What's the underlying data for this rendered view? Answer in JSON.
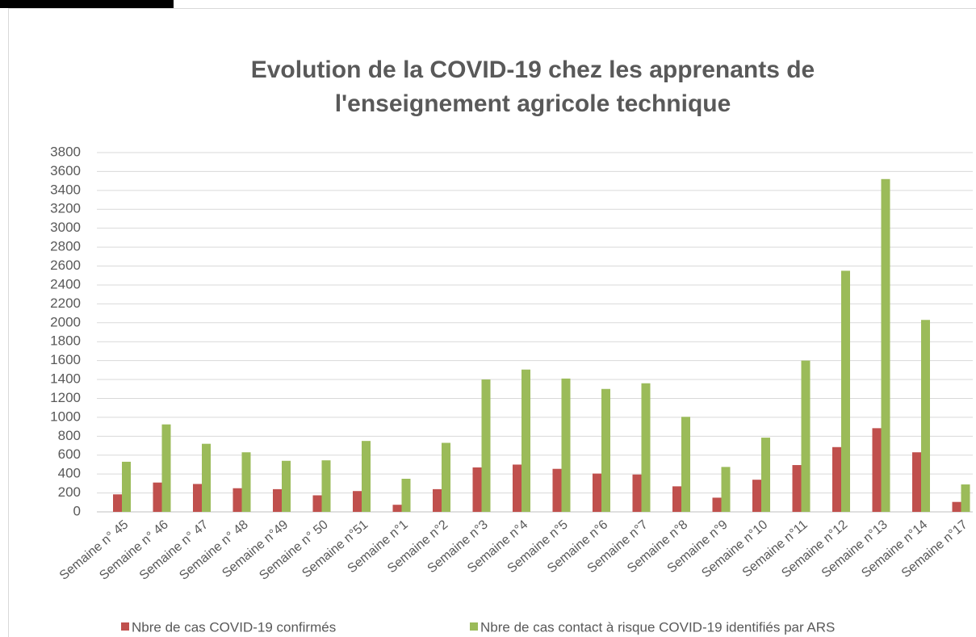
{
  "chart_data": {
    "type": "bar",
    "title": [
      "Evolution de la COVID-19 chez les apprenants de",
      "l'enseignement agricole technique"
    ],
    "categories": [
      "Semaine n° 45",
      "Semaine n° 46",
      "Semaine n° 47",
      "Semaine n° 48",
      "Semaine n°49",
      "Semaine n° 50",
      "Semaine n°51",
      "Semaine n°1",
      "Semaine n°2",
      "Semaine n°3",
      "Semaine n°4",
      "Semaine n°5",
      "Semaine n°6",
      "Semaine n°7",
      "Semaine n°8",
      "Semaine n°9",
      "Semaine n°10",
      "Semaine n°11",
      "Semaine n°12",
      "Semaine n°13",
      "Semaine n°14",
      "Semaine n°17"
    ],
    "series": [
      {
        "name": "Nbre de cas COVID-19 confirmés",
        "color": "#c0504d",
        "values": [
          185,
          310,
          295,
          250,
          240,
          175,
          220,
          75,
          240,
          470,
          500,
          455,
          405,
          395,
          270,
          150,
          340,
          495,
          685,
          885,
          630,
          105
        ]
      },
      {
        "name": "Nbre de cas contact à risque COVID-19 identifiés par ARS",
        "color": "#9bbb59",
        "values": [
          530,
          925,
          720,
          630,
          540,
          545,
          750,
          350,
          730,
          1400,
          1505,
          1410,
          1300,
          1360,
          1005,
          475,
          785,
          1600,
          2550,
          3520,
          2030,
          290
        ]
      }
    ],
    "ylim": [
      0,
      3800
    ],
    "yticks": [
      0,
      200,
      400,
      600,
      800,
      1000,
      1200,
      1400,
      1600,
      1800,
      2000,
      2200,
      2400,
      2600,
      2800,
      3000,
      3200,
      3400,
      3600,
      3800
    ],
    "grid": true,
    "legend": "bottom"
  }
}
